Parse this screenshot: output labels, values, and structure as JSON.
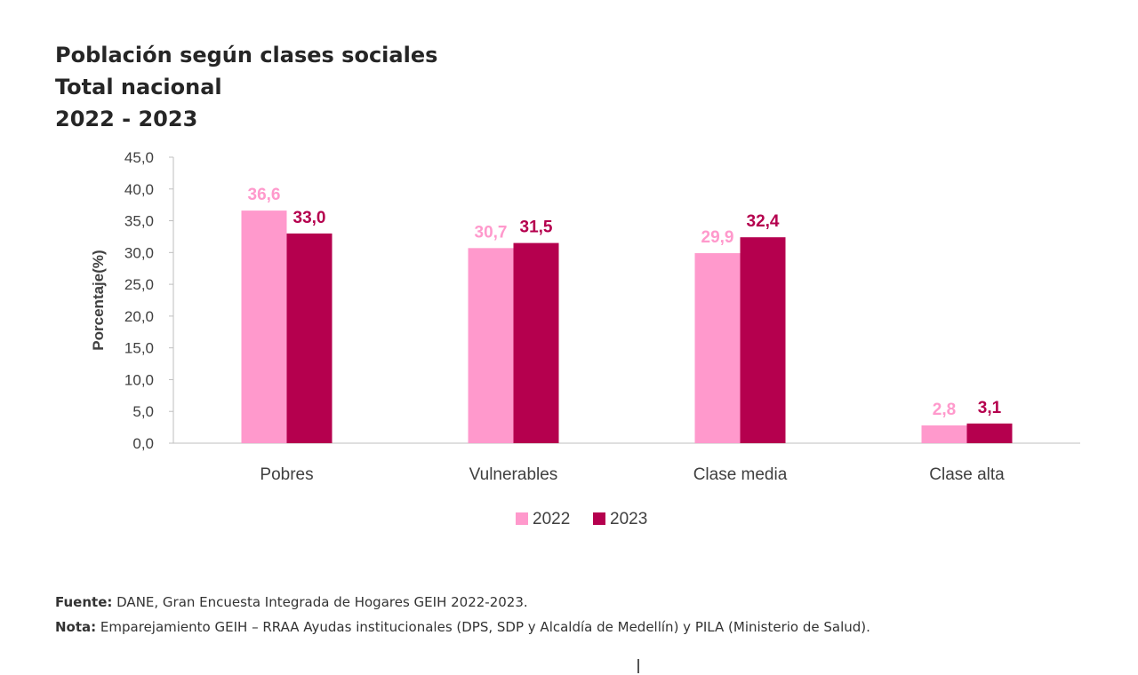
{
  "title": {
    "line1": "Población según clases sociales",
    "line2": "Total nacional",
    "line3": "2022 - 2023"
  },
  "chart_data": {
    "type": "bar",
    "categories": [
      "Pobres",
      "Vulnerables",
      "Clase media",
      "Clase alta"
    ],
    "series": [
      {
        "name": "2022",
        "values": [
          36.6,
          30.7,
          29.9,
          2.8
        ],
        "labels": [
          "36,6",
          "30,7",
          "29,9",
          "2,8"
        ],
        "color": "#FF99CC"
      },
      {
        "name": "2023",
        "values": [
          33.0,
          31.5,
          32.4,
          3.1
        ],
        "labels": [
          "33,0",
          "31,5",
          "32,4",
          "3,1"
        ],
        "color": "#B5004E"
      }
    ],
    "ylabel": "Porcentaje(%)",
    "xlabel": "",
    "ylim": [
      0,
      45
    ],
    "yticks": [
      0,
      5,
      10,
      15,
      20,
      25,
      30,
      35,
      40,
      45
    ],
    "ytick_labels": [
      "0,0",
      "5,0",
      "10,0",
      "15,0",
      "20,0",
      "25,0",
      "30,0",
      "35,0",
      "40,0",
      "45,0"
    ],
    "legend_position": "bottom",
    "grid": false
  },
  "notes": {
    "source_label": "Fuente:",
    "source_text": " DANE, Gran Encuesta Integrada de Hogares GEIH 2022-2023.",
    "note_label": "Nota:",
    "note_text": " Emparejamiento GEIH – RRAA Ayudas institucionales (DPS, SDP y Alcaldía de Medellín) y PILA (Ministerio de Salud)."
  }
}
